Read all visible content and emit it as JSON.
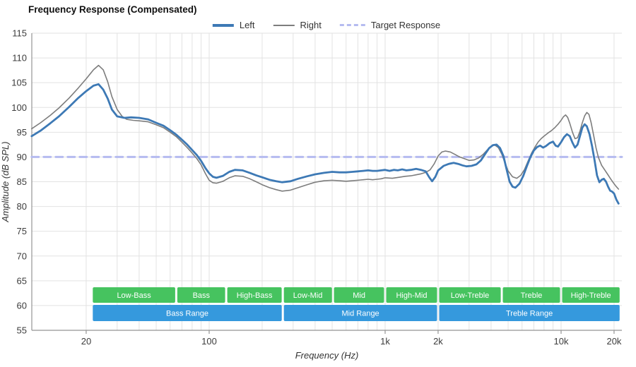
{
  "title": "Frequency Response (Compensated)",
  "legend": {
    "items": [
      {
        "label": "Left",
        "color": "#3d79b5",
        "dash": false,
        "thickness": 4
      },
      {
        "label": "Right",
        "color": "#7d7d7d",
        "dash": false,
        "thickness": 2
      },
      {
        "label": "Target Response",
        "color": "#b5bbf0",
        "dash": true,
        "thickness": 3
      }
    ]
  },
  "axes": {
    "x_label": "Frequency (Hz)",
    "y_label": "Amplitude (dB SPL)",
    "y_min": 55,
    "y_max": 115,
    "y_ticks": [
      115,
      110,
      105,
      100,
      95,
      90,
      85,
      80,
      75,
      70,
      65,
      60,
      55
    ],
    "x_ticks": [
      {
        "f": 20,
        "label": "20"
      },
      {
        "f": 100,
        "label": "100"
      },
      {
        "f": 1000,
        "label": "1k"
      },
      {
        "f": 2000,
        "label": "2k"
      },
      {
        "f": 10000,
        "label": "10k"
      },
      {
        "f": 20000,
        "label": "20k"
      }
    ],
    "x_scale": "log",
    "x_min_hz": 9.8,
    "x_max_hz": 22150
  },
  "bands": {
    "sub_color": "#46c35f",
    "range_color": "#3599dd",
    "sub": [
      {
        "label": "Low-Bass",
        "f1": 21.5,
        "f2": 65
      },
      {
        "label": "Bass",
        "f1": 65,
        "f2": 125
      },
      {
        "label": "High-Bass",
        "f1": 125,
        "f2": 262
      },
      {
        "label": "Low-Mid",
        "f1": 262,
        "f2": 505
      },
      {
        "label": "Mid",
        "f1": 505,
        "f2": 1000
      },
      {
        "label": "High-Mid",
        "f1": 1000,
        "f2": 2000
      },
      {
        "label": "Low-Treble",
        "f1": 2000,
        "f2": 4600
      },
      {
        "label": "Treble",
        "f1": 4600,
        "f2": 10000
      },
      {
        "label": "High-Treble",
        "f1": 10000,
        "f2": 21800
      }
    ],
    "ranges": [
      {
        "label": "Bass Range",
        "f1": 21.5,
        "f2": 262
      },
      {
        "label": "Mid Range",
        "f1": 262,
        "f2": 2000
      },
      {
        "label": "Treble Range",
        "f1": 2000,
        "f2": 21800
      }
    ]
  },
  "chart_data": {
    "type": "line",
    "title": "Frequency Response (Compensated)",
    "xlabel": "Frequency (Hz)",
    "ylabel": "Amplitude (dB SPL)",
    "x_scale": "log",
    "xlim": [
      9.8,
      22150
    ],
    "ylim": [
      55,
      115
    ],
    "grid": true,
    "legend_position": "top",
    "target_db": 90,
    "series": [
      {
        "name": "Left",
        "color": "#3d79b5",
        "width": 2.8,
        "style": "solid",
        "points": [
          [
            9.8,
            94.2
          ],
          [
            11,
            95.3
          ],
          [
            12.5,
            96.8
          ],
          [
            14,
            98.2
          ],
          [
            16,
            100.1
          ],
          [
            18,
            101.9
          ],
          [
            20,
            103.3
          ],
          [
            22,
            104.4
          ],
          [
            23.5,
            104.7
          ],
          [
            25,
            103.6
          ],
          [
            26.5,
            101.8
          ],
          [
            28,
            99.6
          ],
          [
            30,
            98.2
          ],
          [
            33,
            97.9
          ],
          [
            36,
            98.0
          ],
          [
            40,
            97.9
          ],
          [
            45,
            97.6
          ],
          [
            50,
            96.9
          ],
          [
            55,
            96.3
          ],
          [
            60,
            95.4
          ],
          [
            65,
            94.5
          ],
          [
            70,
            93.5
          ],
          [
            75,
            92.5
          ],
          [
            80,
            91.4
          ],
          [
            85,
            90.4
          ],
          [
            90,
            89.2
          ],
          [
            95,
            87.8
          ],
          [
            100,
            86.7
          ],
          [
            105,
            86.0
          ],
          [
            110,
            85.8
          ],
          [
            120,
            86.2
          ],
          [
            130,
            87.0
          ],
          [
            140,
            87.4
          ],
          [
            155,
            87.3
          ],
          [
            170,
            86.8
          ],
          [
            185,
            86.3
          ],
          [
            200,
            85.9
          ],
          [
            220,
            85.4
          ],
          [
            240,
            85.1
          ],
          [
            260,
            84.9
          ],
          [
            290,
            85.1
          ],
          [
            320,
            85.6
          ],
          [
            360,
            86.1
          ],
          [
            400,
            86.5
          ],
          [
            450,
            86.8
          ],
          [
            500,
            87.0
          ],
          [
            550,
            86.9
          ],
          [
            600,
            86.9
          ],
          [
            650,
            87.0
          ],
          [
            700,
            87.1
          ],
          [
            750,
            87.2
          ],
          [
            800,
            87.3
          ],
          [
            850,
            87.2
          ],
          [
            900,
            87.2
          ],
          [
            950,
            87.3
          ],
          [
            1000,
            87.4
          ],
          [
            1060,
            87.2
          ],
          [
            1120,
            87.4
          ],
          [
            1180,
            87.3
          ],
          [
            1250,
            87.5
          ],
          [
            1320,
            87.3
          ],
          [
            1400,
            87.4
          ],
          [
            1500,
            87.6
          ],
          [
            1600,
            87.4
          ],
          [
            1700,
            87.1
          ],
          [
            1780,
            85.9
          ],
          [
            1850,
            85.1
          ],
          [
            1930,
            86.0
          ],
          [
            2000,
            87.3
          ],
          [
            2150,
            88.2
          ],
          [
            2300,
            88.6
          ],
          [
            2450,
            88.8
          ],
          [
            2600,
            88.6
          ],
          [
            2750,
            88.3
          ],
          [
            2900,
            88.1
          ],
          [
            3100,
            88.2
          ],
          [
            3300,
            88.5
          ],
          [
            3500,
            89.3
          ],
          [
            3700,
            90.6
          ],
          [
            3900,
            91.8
          ],
          [
            4100,
            92.4
          ],
          [
            4300,
            92.5
          ],
          [
            4500,
            91.8
          ],
          [
            4700,
            90.2
          ],
          [
            4900,
            87.5
          ],
          [
            5100,
            85.0
          ],
          [
            5300,
            84.0
          ],
          [
            5500,
            83.8
          ],
          [
            5800,
            84.6
          ],
          [
            6100,
            86.2
          ],
          [
            6400,
            88.2
          ],
          [
            6700,
            90.0
          ],
          [
            7000,
            91.3
          ],
          [
            7300,
            92.0
          ],
          [
            7600,
            92.3
          ],
          [
            7900,
            91.9
          ],
          [
            8200,
            92.2
          ],
          [
            8600,
            92.8
          ],
          [
            9000,
            93.1
          ],
          [
            9300,
            92.3
          ],
          [
            9600,
            92.1
          ],
          [
            10000,
            93.0
          ],
          [
            10400,
            94.0
          ],
          [
            10800,
            94.6
          ],
          [
            11200,
            94.2
          ],
          [
            11600,
            92.9
          ],
          [
            12000,
            91.9
          ],
          [
            12400,
            92.5
          ],
          [
            12800,
            94.2
          ],
          [
            13200,
            95.9
          ],
          [
            13600,
            96.6
          ],
          [
            14000,
            96.2
          ],
          [
            14500,
            94.6
          ],
          [
            15000,
            92.2
          ],
          [
            15500,
            89.3
          ],
          [
            16000,
            86.3
          ],
          [
            16500,
            84.9
          ],
          [
            17000,
            85.4
          ],
          [
            17500,
            85.6
          ],
          [
            18000,
            85.0
          ],
          [
            18500,
            84.0
          ],
          [
            19000,
            83.2
          ],
          [
            19500,
            83.0
          ],
          [
            20000,
            82.6
          ],
          [
            20600,
            81.4
          ],
          [
            21200,
            80.6
          ]
        ]
      },
      {
        "name": "Right",
        "color": "#7d7d7d",
        "width": 1.6,
        "style": "solid",
        "points": [
          [
            9.8,
            95.7
          ],
          [
            11,
            96.9
          ],
          [
            12.5,
            98.4
          ],
          [
            14,
            99.9
          ],
          [
            16,
            101.9
          ],
          [
            18,
            103.9
          ],
          [
            20,
            105.8
          ],
          [
            22,
            107.6
          ],
          [
            23.5,
            108.5
          ],
          [
            25,
            107.6
          ],
          [
            26.5,
            105.2
          ],
          [
            28,
            102.2
          ],
          [
            30,
            99.6
          ],
          [
            32,
            98.2
          ],
          [
            34,
            97.6
          ],
          [
            37,
            97.4
          ],
          [
            40,
            97.3
          ],
          [
            45,
            97.1
          ],
          [
            50,
            96.5
          ],
          [
            55,
            95.9
          ],
          [
            60,
            95.0
          ],
          [
            65,
            94.1
          ],
          [
            70,
            93.0
          ],
          [
            75,
            91.9
          ],
          [
            80,
            90.8
          ],
          [
            85,
            89.7
          ],
          [
            90,
            88.4
          ],
          [
            95,
            86.7
          ],
          [
            100,
            85.3
          ],
          [
            105,
            84.8
          ],
          [
            110,
            84.7
          ],
          [
            120,
            85.1
          ],
          [
            130,
            85.8
          ],
          [
            140,
            86.2
          ],
          [
            155,
            86.1
          ],
          [
            170,
            85.6
          ],
          [
            185,
            85.0
          ],
          [
            200,
            84.4
          ],
          [
            220,
            83.8
          ],
          [
            240,
            83.4
          ],
          [
            260,
            83.1
          ],
          [
            290,
            83.3
          ],
          [
            320,
            83.8
          ],
          [
            360,
            84.4
          ],
          [
            400,
            84.9
          ],
          [
            450,
            85.2
          ],
          [
            500,
            85.3
          ],
          [
            550,
            85.2
          ],
          [
            600,
            85.1
          ],
          [
            650,
            85.2
          ],
          [
            700,
            85.3
          ],
          [
            750,
            85.4
          ],
          [
            800,
            85.5
          ],
          [
            850,
            85.4
          ],
          [
            900,
            85.5
          ],
          [
            950,
            85.6
          ],
          [
            1000,
            85.8
          ],
          [
            1100,
            85.7
          ],
          [
            1200,
            85.9
          ],
          [
            1300,
            86.1
          ],
          [
            1400,
            86.2
          ],
          [
            1500,
            86.4
          ],
          [
            1600,
            86.6
          ],
          [
            1700,
            86.9
          ],
          [
            1800,
            87.4
          ],
          [
            1900,
            88.6
          ],
          [
            2000,
            90.2
          ],
          [
            2100,
            91.0
          ],
          [
            2200,
            91.2
          ],
          [
            2350,
            91.0
          ],
          [
            2500,
            90.5
          ],
          [
            2650,
            90.0
          ],
          [
            2800,
            89.7
          ],
          [
            3000,
            89.3
          ],
          [
            3200,
            89.4
          ],
          [
            3400,
            89.8
          ],
          [
            3600,
            90.5
          ],
          [
            3800,
            91.4
          ],
          [
            4000,
            92.2
          ],
          [
            4200,
            92.4
          ],
          [
            4400,
            91.9
          ],
          [
            4600,
            90.6
          ],
          [
            4800,
            88.8
          ],
          [
            5000,
            87.2
          ],
          [
            5300,
            86.0
          ],
          [
            5600,
            85.7
          ],
          [
            5900,
            86.3
          ],
          [
            6200,
            87.5
          ],
          [
            6500,
            89.2
          ],
          [
            6800,
            90.8
          ],
          [
            7100,
            92.0
          ],
          [
            7400,
            93.0
          ],
          [
            7700,
            93.7
          ],
          [
            8000,
            94.2
          ],
          [
            8400,
            94.8
          ],
          [
            8800,
            95.3
          ],
          [
            9200,
            95.9
          ],
          [
            9600,
            96.6
          ],
          [
            10000,
            97.4
          ],
          [
            10300,
            98.1
          ],
          [
            10600,
            98.5
          ],
          [
            10900,
            98.0
          ],
          [
            11200,
            96.8
          ],
          [
            11600,
            95.0
          ],
          [
            12000,
            93.7
          ],
          [
            12400,
            93.9
          ],
          [
            12800,
            95.2
          ],
          [
            13200,
            96.9
          ],
          [
            13600,
            98.3
          ],
          [
            14000,
            99.0
          ],
          [
            14400,
            98.6
          ],
          [
            14800,
            97.0
          ],
          [
            15300,
            94.4
          ],
          [
            15800,
            91.8
          ],
          [
            16300,
            89.9
          ],
          [
            17000,
            88.3
          ],
          [
            17700,
            87.4
          ],
          [
            18400,
            86.5
          ],
          [
            19100,
            85.6
          ],
          [
            19800,
            84.8
          ],
          [
            20500,
            84.1
          ],
          [
            21200,
            83.5
          ]
        ]
      },
      {
        "name": "Target Response",
        "color": "#b5bbf0",
        "width": 3,
        "style": "dashed",
        "points": [
          [
            9.8,
            90
          ],
          [
            22150,
            90
          ]
        ]
      }
    ]
  }
}
